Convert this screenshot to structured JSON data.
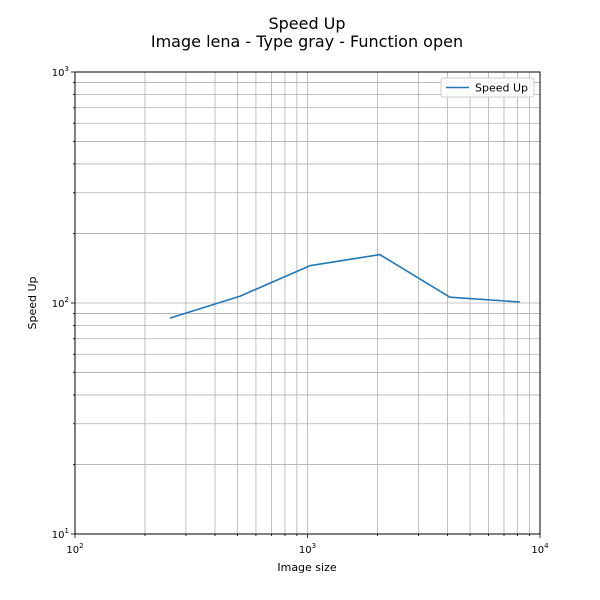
{
  "chart_data": {
    "type": "line",
    "title": "Speed Up",
    "subtitle": "Image lena - Type gray - Function open",
    "xlabel": "Image size",
    "ylabel": "Speed Up",
    "xscale": "log",
    "yscale": "log",
    "xlim": [
      100,
      10000
    ],
    "ylim": [
      10,
      1000
    ],
    "grid": true,
    "grid_which": "both",
    "legend_position": "top-right",
    "x_ticks": [
      {
        "value": 100,
        "base": "10",
        "exp": "2"
      },
      {
        "value": 1000,
        "base": "10",
        "exp": "3"
      },
      {
        "value": 10000,
        "base": "10",
        "exp": "4"
      }
    ],
    "y_ticks": [
      {
        "value": 10,
        "base": "10",
        "exp": "1"
      },
      {
        "value": 100,
        "base": "10",
        "exp": "2"
      },
      {
        "value": 1000,
        "base": "10",
        "exp": "3"
      }
    ],
    "series": [
      {
        "name": "Speed Up",
        "color": "#1f77b4",
        "x": [
          256,
          512,
          1024,
          2048,
          4096,
          8192
        ],
        "y": [
          86,
          107,
          145,
          162,
          106,
          101
        ]
      }
    ]
  }
}
